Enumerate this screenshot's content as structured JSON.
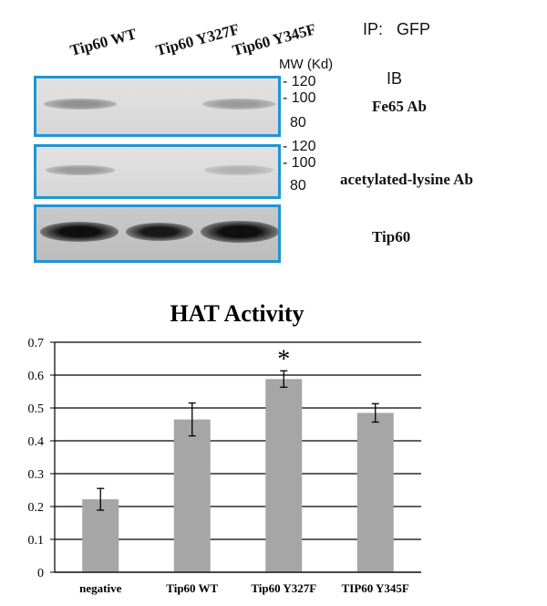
{
  "blot": {
    "lanes": [
      "Tip60  WT",
      "Tip60  Y327F",
      "Tip60  Y345F"
    ],
    "ip_label": "IP:   GFP",
    "mw_header": "MW (Kd)",
    "ib_label": "IB",
    "panels": [
      {
        "antibody": "Fe65 Ab",
        "markers": [
          "120",
          "100",
          "80"
        ],
        "band_intensity": [
          0.35,
          0.0,
          0.3
        ]
      },
      {
        "antibody": "acetylated-lysine Ab",
        "markers": [
          "120",
          "100",
          "80"
        ],
        "band_intensity": [
          0.3,
          0.0,
          0.18
        ]
      },
      {
        "antibody": "Tip60",
        "markers": [],
        "band_intensity": [
          1.0,
          0.95,
          1.0
        ]
      }
    ]
  },
  "chart_data": {
    "type": "bar",
    "title": "HAT Activity",
    "categories": [
      "negative",
      "Tip60 WT",
      "Tip60 Y327F",
      "TIP60 Y345F"
    ],
    "values": [
      0.222,
      0.465,
      0.588,
      0.485
    ],
    "errors": [
      0.033,
      0.05,
      0.025,
      0.028
    ],
    "significance": [
      "",
      "",
      "*",
      ""
    ],
    "ylim": [
      0,
      0.7
    ],
    "yticks": [
      "0",
      "0.1",
      "0.2",
      "0.3",
      "0.4",
      "0.5",
      "0.6",
      "0.7"
    ],
    "grid": true,
    "bar_color": "#a6a6a6"
  }
}
